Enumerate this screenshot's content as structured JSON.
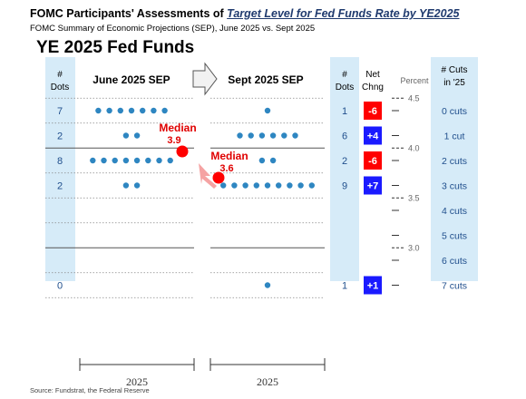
{
  "header": {
    "title_prefix": "FOMC Participants' Assessments of ",
    "title_emph": "Target Level for Fed Funds Rate by YE2025",
    "subtitle": "FOMC Summary of Economic Projections (SEP), June 2025 vs. Sept 2025",
    "big_title": "YE 2025 Fed Funds",
    "source": "Source: Fundstrat, the Federal Reserve"
  },
  "columns": {
    "dots_line1": "#",
    "dots_line2": "Dots",
    "june": "June 2025 SEP",
    "sept": "Sept 2025 SEP",
    "netchg_line1": "Net",
    "netchg_line2": "Chng",
    "percent": "Percent",
    "cuts_line1": "# Cuts",
    "cuts_line2": "in '25"
  },
  "chart_data": {
    "type": "scatter",
    "title": "YE 2025 Fed Funds",
    "ylabel": "Percent",
    "ytick_labels": [
      "4.5",
      "4.0",
      "3.5",
      "3.0"
    ],
    "rates": [
      4.375,
      4.125,
      3.875,
      3.625,
      3.375,
      3.125,
      2.875,
      2.625
    ],
    "cut_labels": [
      "0 cuts",
      "1 cut",
      "2 cuts",
      "3 cuts",
      "4 cuts",
      "5 cuts",
      "6 cuts",
      "7 cuts"
    ],
    "june_counts": [
      7,
      2,
      8,
      2,
      null,
      null,
      null,
      0
    ],
    "sept_counts": [
      1,
      6,
      2,
      9,
      null,
      null,
      null,
      1
    ],
    "net_change": [
      "-6",
      "+4",
      "-6",
      "+7",
      null,
      null,
      null,
      "+1"
    ],
    "series": [
      {
        "name": "June 2025 SEP",
        "values": [
          7,
          2,
          8,
          2,
          0,
          0,
          0,
          0
        ]
      },
      {
        "name": "Sept 2025 SEP",
        "values": [
          1,
          6,
          2,
          9,
          0,
          0,
          0,
          1
        ]
      }
    ],
    "median_june": {
      "label": "Median",
      "value": "3.9"
    },
    "median_sept": {
      "label": "Median",
      "value": "3.6"
    },
    "x_labels": [
      "2025",
      "2025"
    ]
  },
  "colors": {
    "dot": "#2e86c1",
    "panel": "#d6ebf8",
    "negative": "#ff0000",
    "positive": "#1a1aff",
    "median": "#ff0000"
  }
}
